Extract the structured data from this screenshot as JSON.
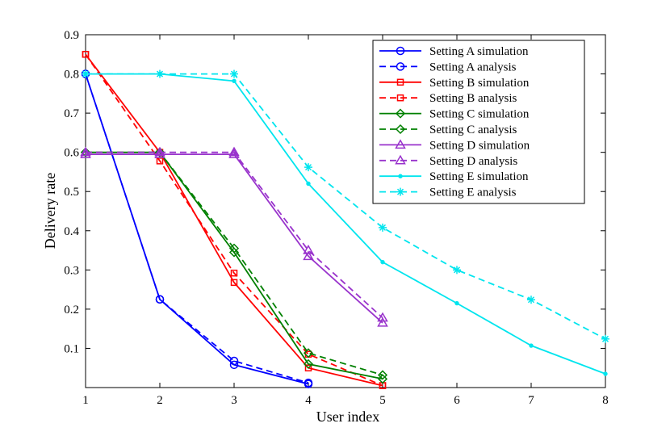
{
  "chart_data": {
    "type": "line",
    "title": "",
    "xlabel": "User index",
    "ylabel": "Delivery rate",
    "xlim": [
      1,
      8
    ],
    "ylim": [
      0,
      0.9
    ],
    "x_ticks": [
      "1",
      "2",
      "3",
      "4",
      "5",
      "6",
      "7",
      "8"
    ],
    "y_ticks": [
      "0.1",
      "0.2",
      "0.3",
      "0.4",
      "0.5",
      "0.6",
      "0.7",
      "0.8",
      "0.9"
    ],
    "grid": false,
    "legend_position": "top-right",
    "series": [
      {
        "name": "Setting A simulation",
        "color": "#0000ff",
        "style": "solid",
        "marker": "circle",
        "x": [
          1,
          2,
          3,
          4
        ],
        "y": [
          0.8,
          0.225,
          0.058,
          0.009
        ]
      },
      {
        "name": "Setting A analysis",
        "color": "#0000ff",
        "style": "dashed",
        "marker": "circle",
        "x": [
          1,
          2,
          3,
          4
        ],
        "y": [
          0.8,
          0.225,
          0.068,
          0.012
        ]
      },
      {
        "name": "Setting B simulation",
        "color": "#ff0000",
        "style": "solid",
        "marker": "square",
        "x": [
          1,
          2,
          3,
          4,
          5
        ],
        "y": [
          0.85,
          0.6,
          0.268,
          0.05,
          0.005
        ]
      },
      {
        "name": "Setting B analysis",
        "color": "#ff0000",
        "style": "dashed",
        "marker": "square",
        "x": [
          1,
          2,
          3,
          4,
          5
        ],
        "y": [
          0.85,
          0.578,
          0.292,
          0.085,
          0.005
        ]
      },
      {
        "name": "Setting C simulation",
        "color": "#008000",
        "style": "solid",
        "marker": "diamond",
        "x": [
          1,
          2,
          3,
          4,
          5
        ],
        "y": [
          0.6,
          0.6,
          0.345,
          0.06,
          0.022
        ]
      },
      {
        "name": "Setting C analysis",
        "color": "#008000",
        "style": "dashed",
        "marker": "diamond",
        "x": [
          1,
          2,
          3,
          4,
          5
        ],
        "y": [
          0.6,
          0.6,
          0.355,
          0.088,
          0.032
        ]
      },
      {
        "name": "Setting D simulation",
        "color": "#9933cc",
        "style": "solid",
        "marker": "triangle",
        "x": [
          1,
          2,
          3,
          4,
          5
        ],
        "y": [
          0.595,
          0.595,
          0.595,
          0.335,
          0.165
        ]
      },
      {
        "name": "Setting D analysis",
        "color": "#9933cc",
        "style": "dashed",
        "marker": "triangle",
        "x": [
          1,
          2,
          3,
          4,
          5
        ],
        "y": [
          0.6,
          0.6,
          0.6,
          0.35,
          0.178
        ]
      },
      {
        "name": "Setting E simulation",
        "color": "#00e5ee",
        "style": "solid",
        "marker": "dot",
        "x": [
          1,
          2,
          3,
          4,
          5,
          6,
          7,
          8
        ],
        "y": [
          0.8,
          0.8,
          0.782,
          0.52,
          0.32,
          0.215,
          0.107,
          0.035
        ]
      },
      {
        "name": "Setting E analysis",
        "color": "#00e5ee",
        "style": "dashed",
        "marker": "asterisk",
        "x": [
          1,
          2,
          3,
          4,
          5,
          6,
          7,
          8
        ],
        "y": [
          0.8,
          0.8,
          0.8,
          0.562,
          0.408,
          0.3,
          0.224,
          0.124
        ]
      }
    ]
  }
}
